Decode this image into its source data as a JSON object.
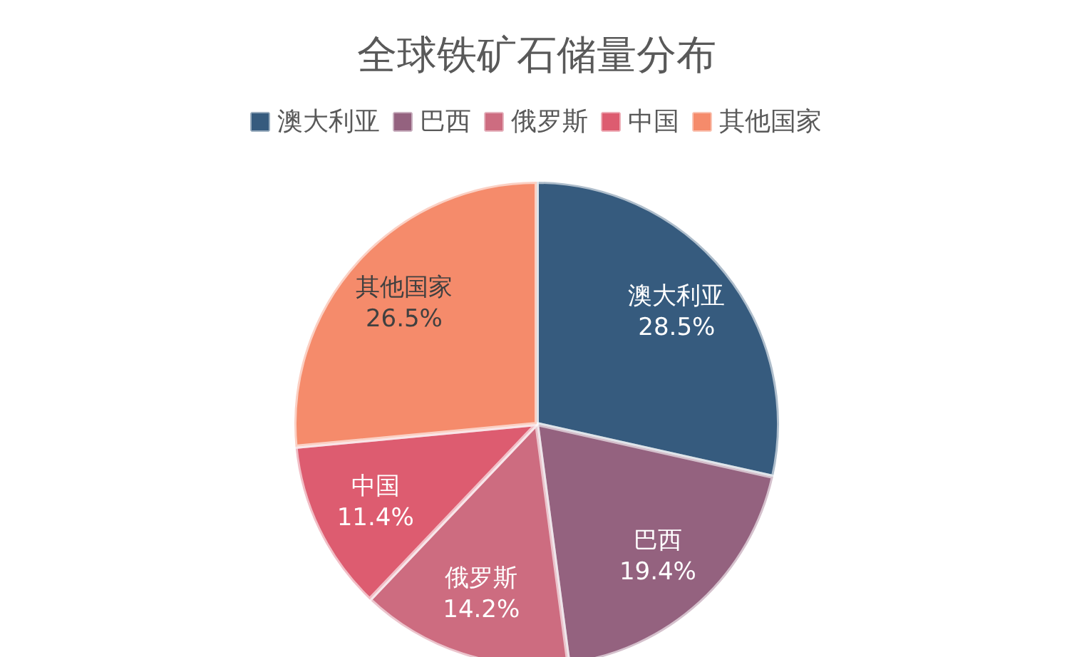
{
  "chart_data": {
    "type": "pie",
    "title": "全球铁矿石储量分布",
    "categories": [
      "澳大利亚",
      "巴西",
      "俄罗斯",
      "中国",
      "其他国家"
    ],
    "values": [
      28.5,
      19.4,
      14.2,
      11.4,
      26.5
    ],
    "value_labels": [
      "28.5%",
      "19.4%",
      "14.2%",
      "11.4%",
      "26.5%"
    ],
    "colors": [
      "#365b7e",
      "#94627f",
      "#cd6c80",
      "#dd5c70",
      "#f58b6b"
    ],
    "legend": "top"
  }
}
